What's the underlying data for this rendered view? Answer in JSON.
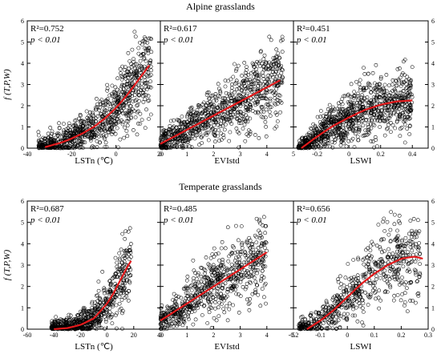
{
  "figure": {
    "rows": [
      {
        "title": "Alpine grasslands",
        "y_label": "f (T,P,W)",
        "panels": [
          {
            "r2_label": "R²=0.752",
            "p_label": "p < 0.01"
          },
          {
            "r2_label": "R²=0.617",
            "p_label": "p < 0.01"
          },
          {
            "r2_label": "R²=0.451",
            "p_label": "p < 0.01"
          }
        ]
      },
      {
        "title": "Temperate grasslands",
        "y_label": "f (T,P,W)",
        "panels": [
          {
            "r2_label": "R²=0.687",
            "p_label": "p < 0.01"
          },
          {
            "r2_label": "R²=0.485",
            "p_label": "p < 0.01"
          },
          {
            "r2_label": "R²=0.656",
            "p_label": "p < 0.01"
          }
        ]
      }
    ]
  },
  "colors": {
    "points": "#000000",
    "fit_line": "#e31a1c"
  },
  "chart_data": [
    {
      "type": "scatter",
      "title": "Alpine grasslands",
      "xlabel": "LSTn (℃)",
      "ylabel": "f (T,P,W)",
      "xlim": [
        -40,
        20
      ],
      "ylim": [
        0,
        6
      ],
      "xticks": [
        -40,
        -20,
        0,
        20
      ],
      "yticks": [
        0,
        1,
        2,
        3,
        4,
        5,
        6
      ],
      "r2": 0.752,
      "p": "< 0.01",
      "fit": {
        "shape": "exponential",
        "x": [
          -32,
          -25,
          -20,
          -15,
          -10,
          -5,
          0,
          5,
          10,
          15
        ],
        "y": [
          0.05,
          0.25,
          0.45,
          0.7,
          1.0,
          1.4,
          1.9,
          2.5,
          3.2,
          3.9
        ]
      },
      "cloud": {
        "x_range": [
          -35,
          16
        ],
        "n_points": 900
      }
    },
    {
      "type": "scatter",
      "title": "Alpine grasslands",
      "xlabel": "EVIstd",
      "ylabel": "",
      "xlim": [
        0,
        5
      ],
      "ylim": [
        0,
        6
      ],
      "xticks": [
        0,
        1,
        2,
        3,
        4,
        5
      ],
      "yticks": [
        0,
        1,
        2,
        3,
        4,
        5,
        6
      ],
      "r2": 0.617,
      "p": "< 0.01",
      "fit": {
        "shape": "linear",
        "x": [
          0,
          4.5
        ],
        "y": [
          0.2,
          3.2
        ]
      },
      "cloud": {
        "x_range": [
          0,
          4.6
        ],
        "n_points": 900
      }
    },
    {
      "type": "scatter",
      "title": "Alpine grasslands",
      "xlabel": "LSWI",
      "ylabel": "",
      "xlim": [
        -0.35,
        0.5
      ],
      "ylim": [
        0,
        6
      ],
      "xticks": [
        -0.2,
        0,
        0.2,
        0.4
      ],
      "yticks": [
        0,
        1,
        2,
        3,
        4,
        5,
        6
      ],
      "r2": 0.451,
      "p": "< 0.01",
      "fit": {
        "shape": "quadratic",
        "x": [
          -0.3,
          -0.2,
          -0.1,
          0,
          0.1,
          0.2,
          0.3,
          0.4
        ],
        "y": [
          0.0,
          0.55,
          1.05,
          1.45,
          1.8,
          2.05,
          2.2,
          2.25
        ]
      },
      "cloud": {
        "x_range": [
          -0.32,
          0.4
        ],
        "n_points": 1000
      }
    },
    {
      "type": "scatter",
      "title": "Temperate grasslands",
      "xlabel": "LSTn (℃)",
      "ylabel": "f (T,P,W)",
      "xlim": [
        -60,
        40
      ],
      "ylim": [
        0,
        6
      ],
      "xticks": [
        -60,
        -40,
        -20,
        0,
        20,
        40
      ],
      "yticks": [
        0,
        1,
        2,
        3,
        4,
        5,
        6
      ],
      "r2": 0.687,
      "p": "< 0.01",
      "fit": {
        "shape": "exponential",
        "x": [
          -40,
          -30,
          -20,
          -10,
          0,
          5,
          10,
          15,
          18
        ],
        "y": [
          0.0,
          0.05,
          0.2,
          0.5,
          1.2,
          1.7,
          2.3,
          2.9,
          3.2
        ]
      },
      "cloud": {
        "x_range": [
          -42,
          18
        ],
        "n_points": 700
      }
    },
    {
      "type": "scatter",
      "title": "Temperate grasslands",
      "xlabel": "EVIstd",
      "ylabel": "",
      "xlim": [
        0,
        5
      ],
      "ylim": [
        0,
        6
      ],
      "xticks": [
        0,
        1,
        2,
        3,
        4,
        5
      ],
      "yticks": [
        0,
        1,
        2,
        3,
        4,
        5,
        6
      ],
      "r2": 0.485,
      "p": "< 0.01",
      "fit": {
        "shape": "linear",
        "x": [
          0,
          4
        ],
        "y": [
          0.4,
          3.6
        ]
      },
      "cloud": {
        "x_range": [
          0,
          4
        ],
        "n_points": 700
      }
    },
    {
      "type": "scatter",
      "title": "Temperate grasslands",
      "xlabel": "LSWI",
      "ylabel": "",
      "xlim": [
        -0.2,
        0.3
      ],
      "ylim": [
        0,
        6
      ],
      "xticks": [
        -0.2,
        -0.1,
        0,
        0.1,
        0.2,
        0.3
      ],
      "yticks": [
        0,
        1,
        2,
        3,
        4,
        5,
        6
      ],
      "r2": 0.656,
      "p": "< 0.01",
      "fit": {
        "shape": "quadratic",
        "x": [
          -0.15,
          -0.1,
          -0.05,
          0,
          0.05,
          0.1,
          0.15,
          0.2,
          0.25,
          0.28
        ],
        "y": [
          0.0,
          0.4,
          0.9,
          1.5,
          2.1,
          2.6,
          3.0,
          3.3,
          3.4,
          3.3
        ]
      },
      "cloud": {
        "x_range": [
          -0.18,
          0.27
        ],
        "n_points": 650
      }
    }
  ]
}
